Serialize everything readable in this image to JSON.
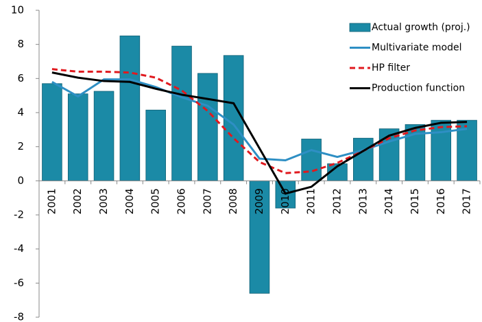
{
  "chart_data": {
    "type": "bar-line",
    "categories": [
      "2001",
      "2002",
      "2003",
      "2004",
      "2005",
      "2006",
      "2007",
      "2008",
      "2009",
      "2010",
      "2011",
      "2012",
      "2013",
      "2014",
      "2015",
      "2016",
      "2017"
    ],
    "series": [
      {
        "name": "Actual growth (proj.)",
        "type": "bar",
        "color": "#1b8aa6",
        "values": [
          5.7,
          5.1,
          5.25,
          8.5,
          4.15,
          7.9,
          6.3,
          7.35,
          -6.6,
          -1.6,
          2.45,
          1.0,
          2.5,
          3.05,
          3.3,
          3.55,
          3.55
        ]
      },
      {
        "name": "Multivariate model",
        "type": "line",
        "color": "#2e8fc4",
        "dash": "none",
        "values": [
          5.8,
          4.95,
          5.95,
          5.95,
          5.5,
          4.9,
          4.4,
          3.3,
          1.3,
          1.2,
          1.8,
          1.4,
          1.8,
          2.3,
          2.75,
          2.85,
          3.05
        ]
      },
      {
        "name": "HP filter",
        "type": "line",
        "color": "#e0191e",
        "dash": "8 5",
        "values": [
          6.55,
          6.4,
          6.4,
          6.35,
          6.05,
          5.3,
          4.1,
          2.5,
          1.1,
          0.45,
          0.55,
          1.05,
          1.75,
          2.5,
          2.95,
          3.15,
          3.2
        ]
      },
      {
        "name": "Production function",
        "type": "line",
        "color": "#000000",
        "dash": "none",
        "values": [
          6.35,
          6.05,
          5.85,
          5.8,
          5.4,
          5.05,
          4.8,
          4.55,
          1.9,
          -0.75,
          -0.35,
          0.85,
          1.75,
          2.65,
          3.1,
          3.4,
          3.45
        ]
      }
    ],
    "ylim": [
      -8,
      10
    ],
    "yticks": [
      -8,
      -6,
      -4,
      -2,
      0,
      2,
      4,
      6,
      8,
      10
    ],
    "grid": false,
    "legend": "upper right"
  }
}
